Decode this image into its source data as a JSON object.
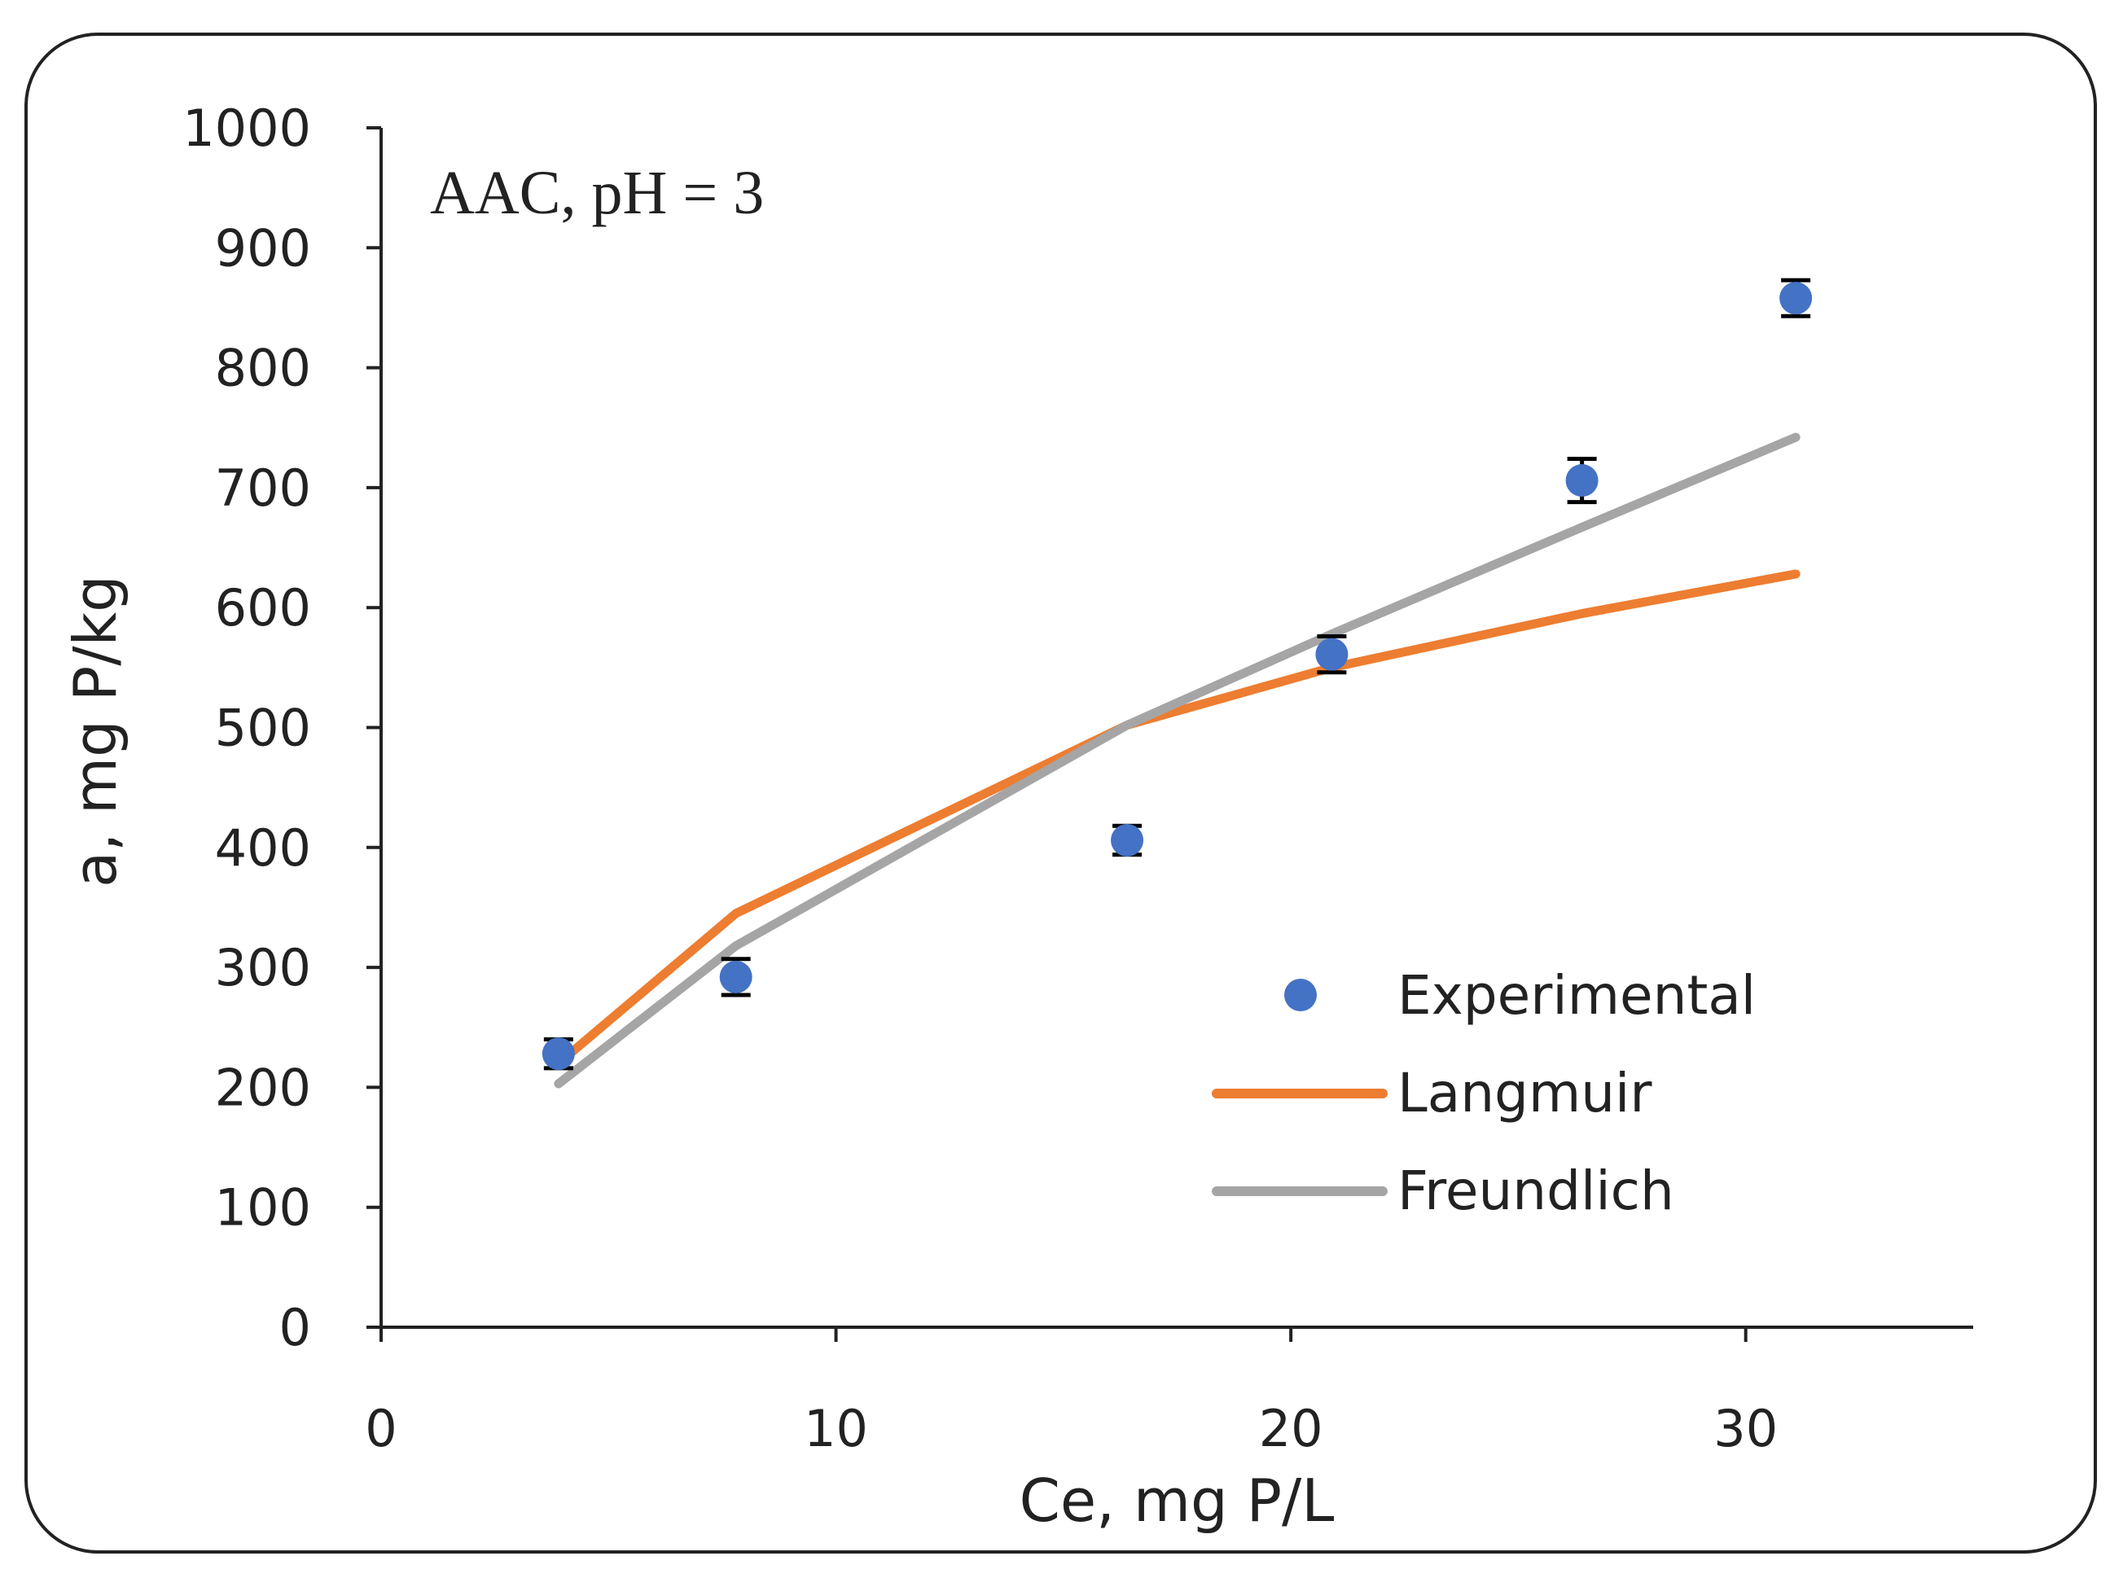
{
  "chart_data": {
    "type": "scatter",
    "title": "",
    "annotation": "AAC, pH = 3",
    "xlabel": "Ce, mg P/L",
    "ylabel": "a, mg P/kg",
    "xlim": [
      0,
      35
    ],
    "ylim": [
      0,
      1000
    ],
    "xticks": [
      0,
      10,
      20,
      30
    ],
    "yticks": [
      0,
      100,
      200,
      300,
      400,
      500,
      600,
      700,
      800,
      900,
      1000
    ],
    "grid": false,
    "legend_position": "bottom-right",
    "series": [
      {
        "name": "Experimental",
        "kind": "scatter",
        "color": "#4472C4",
        "x": [
          3.9,
          7.8,
          16.4,
          20.9,
          26.4,
          31.1
        ],
        "y": [
          228,
          292,
          406,
          561,
          706,
          858
        ],
        "error": [
          12,
          15,
          12,
          15,
          18,
          15
        ]
      },
      {
        "name": "Langmuir",
        "kind": "line",
        "color": "#ED7D31",
        "x": [
          3.9,
          7.8,
          16.4,
          20.9,
          26.4,
          31.1
        ],
        "y": [
          220,
          345,
          502,
          550,
          595,
          628
        ]
      },
      {
        "name": "Freundlich",
        "kind": "line",
        "color": "#A5A5A5",
        "x": [
          3.9,
          7.8,
          16.4,
          20.9,
          26.4,
          31.1
        ],
        "y": [
          203,
          318,
          502,
          578,
          667,
          742
        ]
      }
    ]
  }
}
